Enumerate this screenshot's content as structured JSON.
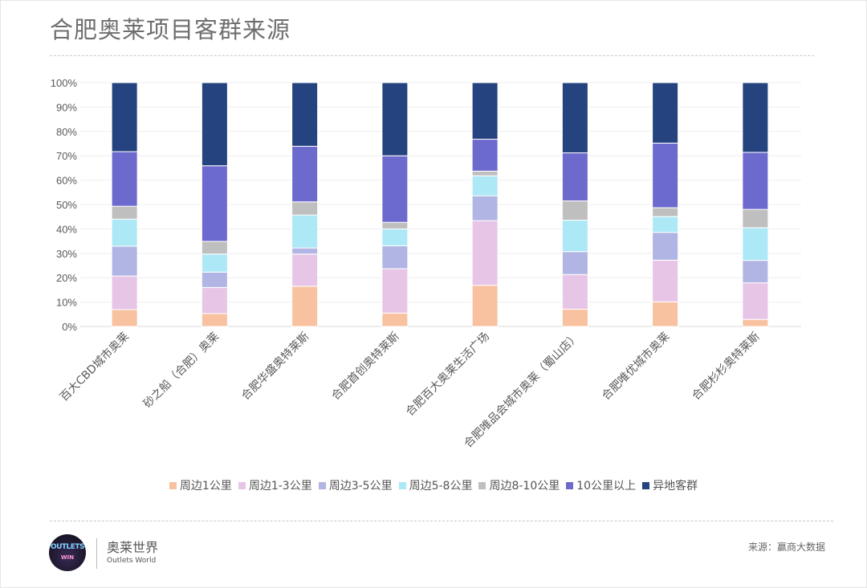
{
  "title": "合肥奥莱项目客群来源",
  "chart_data": {
    "type": "bar",
    "stacked": "percent",
    "title": "",
    "xlabel": "",
    "ylabel": "",
    "ylim": [
      0,
      100
    ],
    "yticks": [
      "0%",
      "10%",
      "20%",
      "30%",
      "40%",
      "50%",
      "60%",
      "70%",
      "80%",
      "90%",
      "100%"
    ],
    "grid": true,
    "legend_position": "bottom",
    "categories": [
      "百大CBD城市奥莱",
      "砂之船（合肥）奥莱",
      "合肥华盛奥特莱斯",
      "合肥首创奥特莱斯",
      "合肥百大奥莱生活广场",
      "合肥唯品会城市奥莱（蜀山店）",
      "合肥唯优城市奥莱",
      "合肥杉杉奥特莱斯"
    ],
    "series": [
      {
        "name": "周边1公里",
        "color": "#f8c1a0",
        "values": [
          6.9,
          5.3,
          16.5,
          5.5,
          16.9,
          7.1,
          10.1,
          2.9
        ]
      },
      {
        "name": "周边1-3公里",
        "color": "#e7c5e6",
        "values": [
          13.8,
          10.7,
          13.2,
          18.2,
          26.5,
          14.2,
          17.1,
          15.0
        ]
      },
      {
        "name": "周边3-5公里",
        "color": "#b1b5e3",
        "values": [
          12.2,
          6.3,
          2.5,
          9.4,
          10.2,
          9.4,
          11.4,
          9.2
        ]
      },
      {
        "name": "周边5-8公里",
        "color": "#ade8f6",
        "values": [
          11.1,
          7.4,
          13.5,
          6.9,
          8.2,
          12.9,
          6.5,
          13.4
        ]
      },
      {
        "name": "周边8-10公里",
        "color": "#bfbfbf",
        "values": [
          5.3,
          5.2,
          5.4,
          2.7,
          1.9,
          7.9,
          3.6,
          7.5
        ]
      },
      {
        "name": "10公里以上",
        "color": "#6d6ace",
        "values": [
          22.4,
          31.0,
          22.8,
          27.3,
          13.1,
          19.7,
          26.5,
          23.4
        ]
      },
      {
        "name": "异地客群",
        "color": "#24437f",
        "values": [
          28.3,
          34.1,
          26.1,
          30.0,
          23.2,
          28.8,
          24.8,
          28.6
        ]
      }
    ]
  },
  "footer": {
    "logo_text": "OUTLETS WIN",
    "brand": "奥莱世界",
    "brand_en": "Outlets World",
    "source": "来源：赢商大数据"
  }
}
